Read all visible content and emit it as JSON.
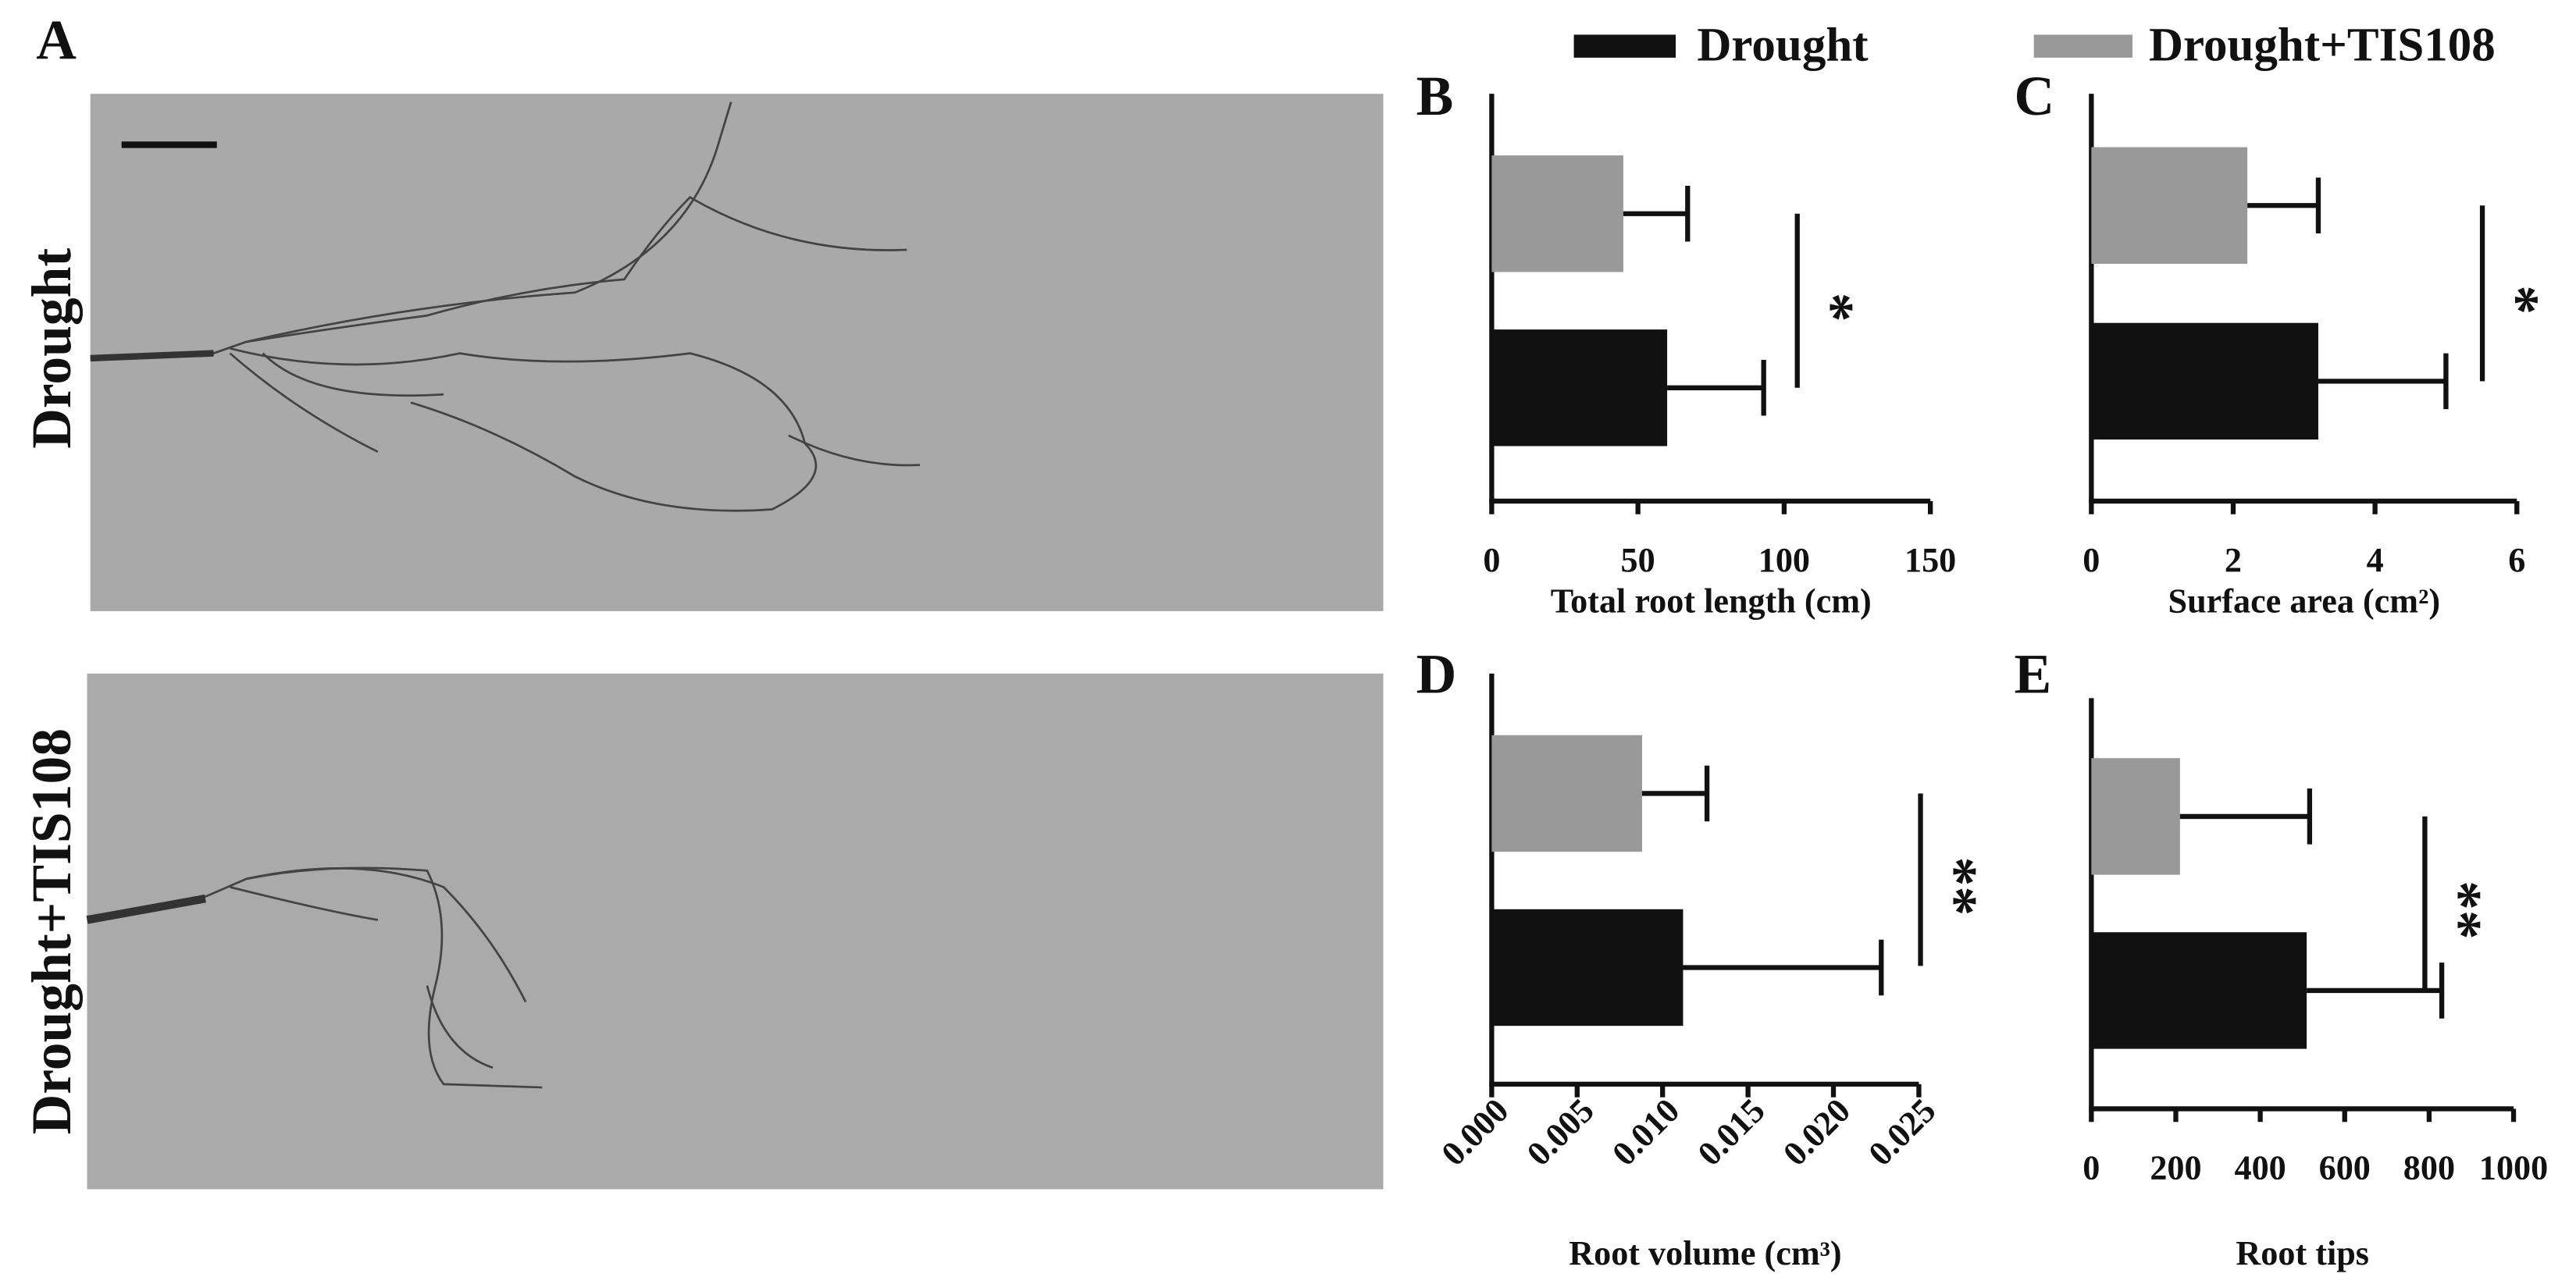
{
  "figure": {
    "panel": "A",
    "rows": [
      "Drought",
      "Drought+TIS108"
    ]
  },
  "legend": {
    "names": [
      "Drought",
      "Drought+TIS108"
    ],
    "colors": [
      "#111111",
      "#999999"
    ]
  },
  "chart_data": [
    {
      "type": "bar",
      "orientation": "horizontal",
      "panel": "B",
      "xlabel": "Total root length (cm)",
      "values": [
        60,
        45
      ],
      "errors": [
        33,
        22
      ],
      "significance": "*",
      "xlim": [
        0,
        150
      ],
      "xticks": [
        0,
        50,
        100,
        150
      ]
    },
    {
      "type": "bar",
      "orientation": "horizontal",
      "panel": "C",
      "xlabel": "Surface area (cm²)",
      "values": [
        3.2,
        2.2
      ],
      "errors": [
        1.8,
        1.0
      ],
      "significance": "*",
      "xlim": [
        0,
        6
      ],
      "xticks": [
        0,
        2,
        4,
        6
      ]
    },
    {
      "type": "bar",
      "orientation": "horizontal",
      "panel": "D",
      "xlabel": "Root volume (cm³)",
      "values": [
        0.0112,
        0.0088
      ],
      "errors": [
        0.0116,
        0.0038
      ],
      "significance": "**",
      "xlim": [
        0,
        0.025
      ],
      "xticks": [
        {
          "value": 0,
          "label": "0.000"
        },
        {
          "value": 0.005,
          "label": "0.005"
        },
        {
          "value": 0.01,
          "label": "0.010"
        },
        {
          "value": 0.015,
          "label": "0.015"
        },
        {
          "value": 0.02,
          "label": "0.020"
        },
        {
          "value": 0.025,
          "label": "0.025"
        }
      ]
    },
    {
      "type": "bar",
      "orientation": "horizontal",
      "panel": "E",
      "xlabel": "Root tips",
      "values": [
        510,
        210
      ],
      "errors": [
        320,
        307
      ],
      "significance": "**",
      "xlim": [
        0,
        1000
      ],
      "xticks": [
        0,
        200,
        400,
        600,
        800,
        1000
      ]
    }
  ]
}
